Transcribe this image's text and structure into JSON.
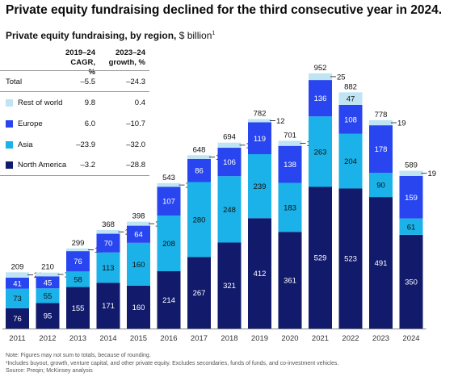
{
  "header": {
    "title": "Private equity fundraising declined for the third consecutive year in 2024.",
    "subtitle": "Private equity fundraising, by region,",
    "subtitle_unit": " $ billion",
    "subtitle_note_mark": "1"
  },
  "legend_table": {
    "col1_header_line1": "2019–24",
    "col1_header_line2": "CAGR, %",
    "col2_header_line1": "2023–24",
    "col2_header_line2": "growth, %",
    "rows": [
      {
        "name": "Total",
        "cagr": "–5.5",
        "growth": "–24.3"
      },
      {
        "name": "Rest of world",
        "cagr": "9.8",
        "growth": "0.4",
        "color": "#bfe4f3"
      },
      {
        "name": "Europe",
        "cagr": "6.0",
        "growth": "–10.7",
        "color": "#2845f0"
      },
      {
        "name": "Asia",
        "cagr": "–23.9",
        "growth": "–32.0",
        "color": "#1ab2e8"
      },
      {
        "name": "North America",
        "cagr": "–3.2",
        "growth": "–28.8",
        "color": "#111a6b"
      }
    ]
  },
  "chart_data": {
    "type": "bar",
    "stacked": true,
    "title": "Private equity fundraising declined for the third consecutive year in 2024.",
    "subtitle": "Private equity fundraising, by region, $ billion",
    "categories": [
      "2011",
      "2012",
      "2013",
      "2014",
      "2015",
      "2016",
      "2017",
      "2018",
      "2019",
      "2020",
      "2021",
      "2022",
      "2023",
      "2024"
    ],
    "series": [
      {
        "name": "North America",
        "color": "#111a6b",
        "values": [
          76,
          95,
          155,
          171,
          160,
          214,
          267,
          321,
          412,
          361,
          529,
          523,
          491,
          350
        ]
      },
      {
        "name": "Asia",
        "color": "#1ab2e8",
        "values": [
          73,
          55,
          58,
          113,
          160,
          208,
          280,
          248,
          239,
          183,
          263,
          204,
          90,
          61
        ]
      },
      {
        "name": "Europe",
        "color": "#2845f0",
        "values": [
          41,
          45,
          76,
          70,
          64,
          107,
          86,
          106,
          119,
          138,
          136,
          108,
          178,
          159
        ]
      },
      {
        "name": "Rest of world",
        "color": "#bfe4f3",
        "values": [
          20,
          14,
          10,
          14,
          15,
          14,
          14,
          19,
          12,
          19,
          25,
          47,
          19,
          19
        ]
      }
    ],
    "totals": [
      209,
      210,
      299,
      368,
      398,
      543,
      648,
      694,
      782,
      701,
      952,
      882,
      778,
      589
    ],
    "ylim": [
      0,
      1000
    ],
    "grid": false,
    "legend_placement": "top-left table"
  },
  "notes": {
    "line1": "Note: Figures may not sum to totals, because of rounding.",
    "line2": "¹Includes buyout, growth, venture capital, and other private equity. Excludes secondaries, funds of funds, and co-investment vehicles.",
    "line3": "Source: Preqin; McKinsey analysis"
  }
}
